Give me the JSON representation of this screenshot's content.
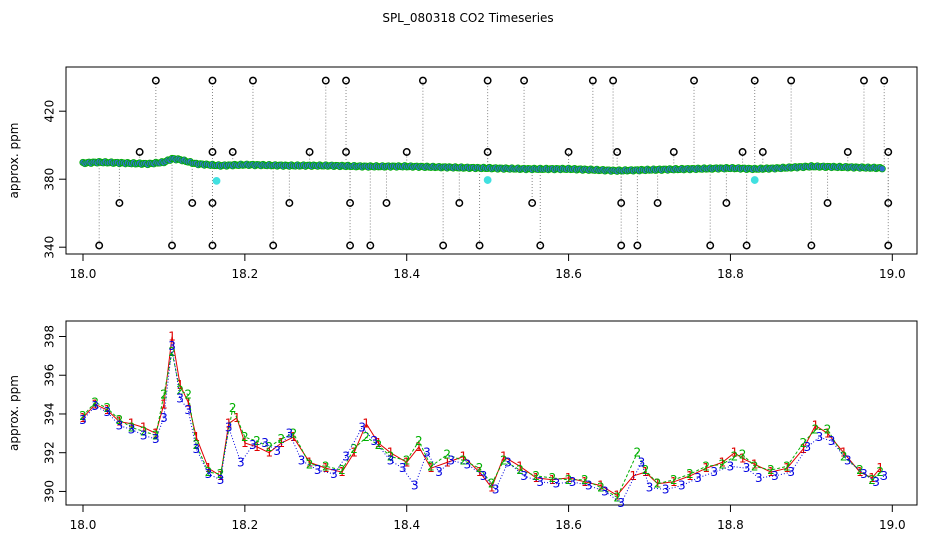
{
  "title": "SPL_080318  CO2 Timeseries",
  "colors": {
    "series1": "#e00000",
    "series2": "#00b000",
    "series3": "#0000e0",
    "fill": "#3070d0",
    "outlier": "#000000",
    "flag": "#40e0e0"
  },
  "chart_data": [
    {
      "type": "scatter",
      "ylabel": "approx. ppm",
      "xlim": [
        18.0,
        19.0
      ],
      "ylim": [
        336,
        446
      ],
      "xticks": [
        "18.0",
        "18.2",
        "18.4",
        "18.6",
        "18.8",
        "19.0"
      ],
      "yticks": [
        "340",
        "380",
        "420"
      ],
      "baseline": [
        [
          18.0,
          389.5
        ],
        [
          18.02,
          390
        ],
        [
          18.05,
          389.5
        ],
        [
          18.08,
          389
        ],
        [
          18.1,
          390
        ],
        [
          18.11,
          392
        ],
        [
          18.12,
          391.5
        ],
        [
          18.14,
          389
        ],
        [
          18.17,
          388
        ],
        [
          18.2,
          388.5
        ],
        [
          18.25,
          388
        ],
        [
          18.3,
          388
        ],
        [
          18.35,
          387.5
        ],
        [
          18.4,
          387.5
        ],
        [
          18.45,
          387
        ],
        [
          18.5,
          386.5
        ],
        [
          18.55,
          386
        ],
        [
          18.6,
          386
        ],
        [
          18.66,
          385
        ],
        [
          18.7,
          385.5
        ],
        [
          18.75,
          386
        ],
        [
          18.8,
          386.5
        ],
        [
          18.83,
          386
        ],
        [
          18.86,
          386.5
        ],
        [
          18.9,
          387.5
        ],
        [
          18.95,
          387
        ],
        [
          18.99,
          386.5
        ]
      ],
      "outliers_high": [
        18.09,
        18.16,
        18.21,
        18.3,
        18.325,
        18.42,
        18.5,
        18.545,
        18.63,
        18.655,
        18.755,
        18.83,
        18.875,
        18.965,
        18.99
      ],
      "outliers_mid": [
        18.07,
        18.16,
        18.185,
        18.28,
        18.325,
        18.4,
        18.5,
        18.6,
        18.66,
        18.73,
        18.815,
        18.84,
        18.945,
        18.995
      ],
      "outliers_low": [
        18.045,
        18.135,
        18.16,
        18.255,
        18.33,
        18.375,
        18.465,
        18.555,
        18.665,
        18.71,
        18.795,
        18.92,
        18.995
      ],
      "outliers_bottom": [
        18.02,
        18.11,
        18.16,
        18.235,
        18.33,
        18.355,
        18.445,
        18.49,
        18.565,
        18.665,
        18.685,
        18.775,
        18.82,
        18.9,
        18.995
      ],
      "flagged": [
        [
          18.165,
          379
        ],
        [
          18.5,
          379.5
        ],
        [
          18.83,
          379.5
        ]
      ]
    },
    {
      "type": "scatter",
      "ylabel": "approx. ppm",
      "xlim": [
        18.0,
        19.0
      ],
      "ylim": [
        389.3,
        398.8
      ],
      "xticks": [
        "18.0",
        "18.2",
        "18.4",
        "18.6",
        "18.8",
        "19.0"
      ],
      "yticks": [
        "390",
        "392",
        "394",
        "396",
        "398"
      ],
      "markers": [
        "1",
        "2",
        "3"
      ],
      "series": [
        {
          "marker": "1",
          "points": [
            [
              18.0,
              393.8
            ],
            [
              18.015,
              394.5
            ],
            [
              18.03,
              394.2
            ],
            [
              18.045,
              393.6
            ],
            [
              18.06,
              393.5
            ],
            [
              18.075,
              393.3
            ],
            [
              18.09,
              393
            ],
            [
              18.1,
              394.5
            ],
            [
              18.11,
              398
            ],
            [
              18.12,
              395.5
            ],
            [
              18.13,
              394.6
            ],
            [
              18.14,
              392.8
            ],
            [
              18.155,
              391.2
            ],
            [
              18.17,
              390.8
            ],
            [
              18.18,
              393.5
            ],
            [
              18.19,
              393.8
            ],
            [
              18.2,
              392.5
            ],
            [
              18.215,
              392.3
            ],
            [
              18.23,
              392
            ],
            [
              18.245,
              392.5
            ],
            [
              18.26,
              392.8
            ],
            [
              18.28,
              391.5
            ],
            [
              18.3,
              391.2
            ],
            [
              18.32,
              391
            ],
            [
              18.335,
              392
            ],
            [
              18.35,
              393.5
            ],
            [
              18.365,
              392.5
            ],
            [
              18.38,
              392
            ],
            [
              18.4,
              391.5
            ],
            [
              18.415,
              392.3
            ],
            [
              18.43,
              391.2
            ],
            [
              18.45,
              391.5
            ],
            [
              18.47,
              391.8
            ],
            [
              18.49,
              391
            ],
            [
              18.505,
              390.2
            ],
            [
              18.52,
              391.8
            ],
            [
              18.54,
              391.3
            ],
            [
              18.56,
              390.7
            ],
            [
              18.58,
              390.6
            ],
            [
              18.6,
              390.7
            ],
            [
              18.62,
              390.5
            ],
            [
              18.64,
              390.3
            ],
            [
              18.66,
              389.8
            ],
            [
              18.68,
              390.8
            ],
            [
              18.695,
              391
            ],
            [
              18.71,
              390.4
            ],
            [
              18.73,
              390.5
            ],
            [
              18.75,
              390.8
            ],
            [
              18.77,
              391.2
            ],
            [
              18.79,
              391.5
            ],
            [
              18.805,
              392
            ],
            [
              18.815,
              391.7
            ],
            [
              18.83,
              391.4
            ],
            [
              18.85,
              391
            ],
            [
              18.87,
              391.2
            ],
            [
              18.89,
              392.2
            ],
            [
              18.905,
              393.4
            ],
            [
              18.92,
              393
            ],
            [
              18.94,
              392
            ],
            [
              18.96,
              391
            ],
            [
              18.975,
              390.7
            ],
            [
              18.985,
              391.2
            ]
          ]
        },
        {
          "marker": "2",
          "points": [
            [
              18.0,
              393.9
            ],
            [
              18.015,
              394.6
            ],
            [
              18.03,
              394.3
            ],
            [
              18.045,
              393.7
            ],
            [
              18.06,
              393.3
            ],
            [
              18.075,
              393.1
            ],
            [
              18.09,
              392.9
            ],
            [
              18.1,
              395
            ],
            [
              18.11,
              397.2
            ],
            [
              18.12,
              395.2
            ],
            [
              18.13,
              395
            ],
            [
              18.14,
              392.4
            ],
            [
              18.155,
              391
            ],
            [
              18.17,
              390.9
            ],
            [
              18.185,
              394.3
            ],
            [
              18.2,
              392.8
            ],
            [
              18.215,
              392.6
            ],
            [
              18.23,
              392.3
            ],
            [
              18.245,
              392.7
            ],
            [
              18.26,
              393
            ],
            [
              18.28,
              391.4
            ],
            [
              18.3,
              391.3
            ],
            [
              18.32,
              391.1
            ],
            [
              18.335,
              392.2
            ],
            [
              18.35,
              392.8
            ],
            [
              18.365,
              392.4
            ],
            [
              18.38,
              391.8
            ],
            [
              18.4,
              391.6
            ],
            [
              18.415,
              392.6
            ],
            [
              18.43,
              391.3
            ],
            [
              18.45,
              391.9
            ],
            [
              18.47,
              391.6
            ],
            [
              18.49,
              391.2
            ],
            [
              18.505,
              390.4
            ],
            [
              18.52,
              391.6
            ],
            [
              18.54,
              391.1
            ],
            [
              18.56,
              390.8
            ],
            [
              18.58,
              390.7
            ],
            [
              18.6,
              390.6
            ],
            [
              18.62,
              390.6
            ],
            [
              18.64,
              390.2
            ],
            [
              18.66,
              389.7
            ],
            [
              18.685,
              392
            ],
            [
              18.695,
              391.1
            ],
            [
              18.71,
              390.4
            ],
            [
              18.73,
              390.6
            ],
            [
              18.75,
              390.9
            ],
            [
              18.77,
              391.3
            ],
            [
              18.79,
              391.4
            ],
            [
              18.805,
              391.8
            ],
            [
              18.815,
              391.9
            ],
            [
              18.83,
              391.3
            ],
            [
              18.85,
              391.1
            ],
            [
              18.87,
              391.3
            ],
            [
              18.89,
              392.5
            ],
            [
              18.905,
              393.2
            ],
            [
              18.92,
              393.2
            ],
            [
              18.94,
              391.8
            ],
            [
              18.96,
              391.1
            ],
            [
              18.975,
              390.6
            ],
            [
              18.985,
              391
            ]
          ]
        },
        {
          "marker": "3",
          "points": [
            [
              18.0,
              393.7
            ],
            [
              18.015,
              394.4
            ],
            [
              18.03,
              394.1
            ],
            [
              18.045,
              393.4
            ],
            [
              18.06,
              393.2
            ],
            [
              18.075,
              392.9
            ],
            [
              18.09,
              392.7
            ],
            [
              18.1,
              393.8
            ],
            [
              18.11,
              397.5
            ],
            [
              18.12,
              394.8
            ],
            [
              18.13,
              394.2
            ],
            [
              18.14,
              392.2
            ],
            [
              18.155,
              390.9
            ],
            [
              18.17,
              390.6
            ],
            [
              18.18,
              393.3
            ],
            [
              18.195,
              391.5
            ],
            [
              18.21,
              392.4
            ],
            [
              18.225,
              392.5
            ],
            [
              18.24,
              392.1
            ],
            [
              18.255,
              393
            ],
            [
              18.27,
              391.6
            ],
            [
              18.29,
              391.1
            ],
            [
              18.31,
              390.9
            ],
            [
              18.325,
              391.8
            ],
            [
              18.345,
              393.3
            ],
            [
              18.36,
              392.6
            ],
            [
              18.38,
              391.6
            ],
            [
              18.395,
              391.2
            ],
            [
              18.41,
              390.3
            ],
            [
              18.425,
              392
            ],
            [
              18.44,
              391
            ],
            [
              18.455,
              391.6
            ],
            [
              18.475,
              391.4
            ],
            [
              18.495,
              390.8
            ],
            [
              18.51,
              390.1
            ],
            [
              18.525,
              391.5
            ],
            [
              18.545,
              390.8
            ],
            [
              18.565,
              390.5
            ],
            [
              18.585,
              390.4
            ],
            [
              18.605,
              390.5
            ],
            [
              18.625,
              390.3
            ],
            [
              18.645,
              390
            ],
            [
              18.665,
              389.4
            ],
            [
              18.69,
              391.5
            ],
            [
              18.7,
              390.2
            ],
            [
              18.72,
              390.1
            ],
            [
              18.74,
              390.3
            ],
            [
              18.76,
              390.7
            ],
            [
              18.78,
              391
            ],
            [
              18.8,
              391.3
            ],
            [
              18.82,
              391.2
            ],
            [
              18.835,
              390.7
            ],
            [
              18.855,
              390.8
            ],
            [
              18.875,
              391
            ],
            [
              18.895,
              392.3
            ],
            [
              18.91,
              392.8
            ],
            [
              18.925,
              392.6
            ],
            [
              18.945,
              391.6
            ],
            [
              18.965,
              390.9
            ],
            [
              18.98,
              390.5
            ],
            [
              18.99,
              390.8
            ]
          ]
        }
      ]
    }
  ]
}
